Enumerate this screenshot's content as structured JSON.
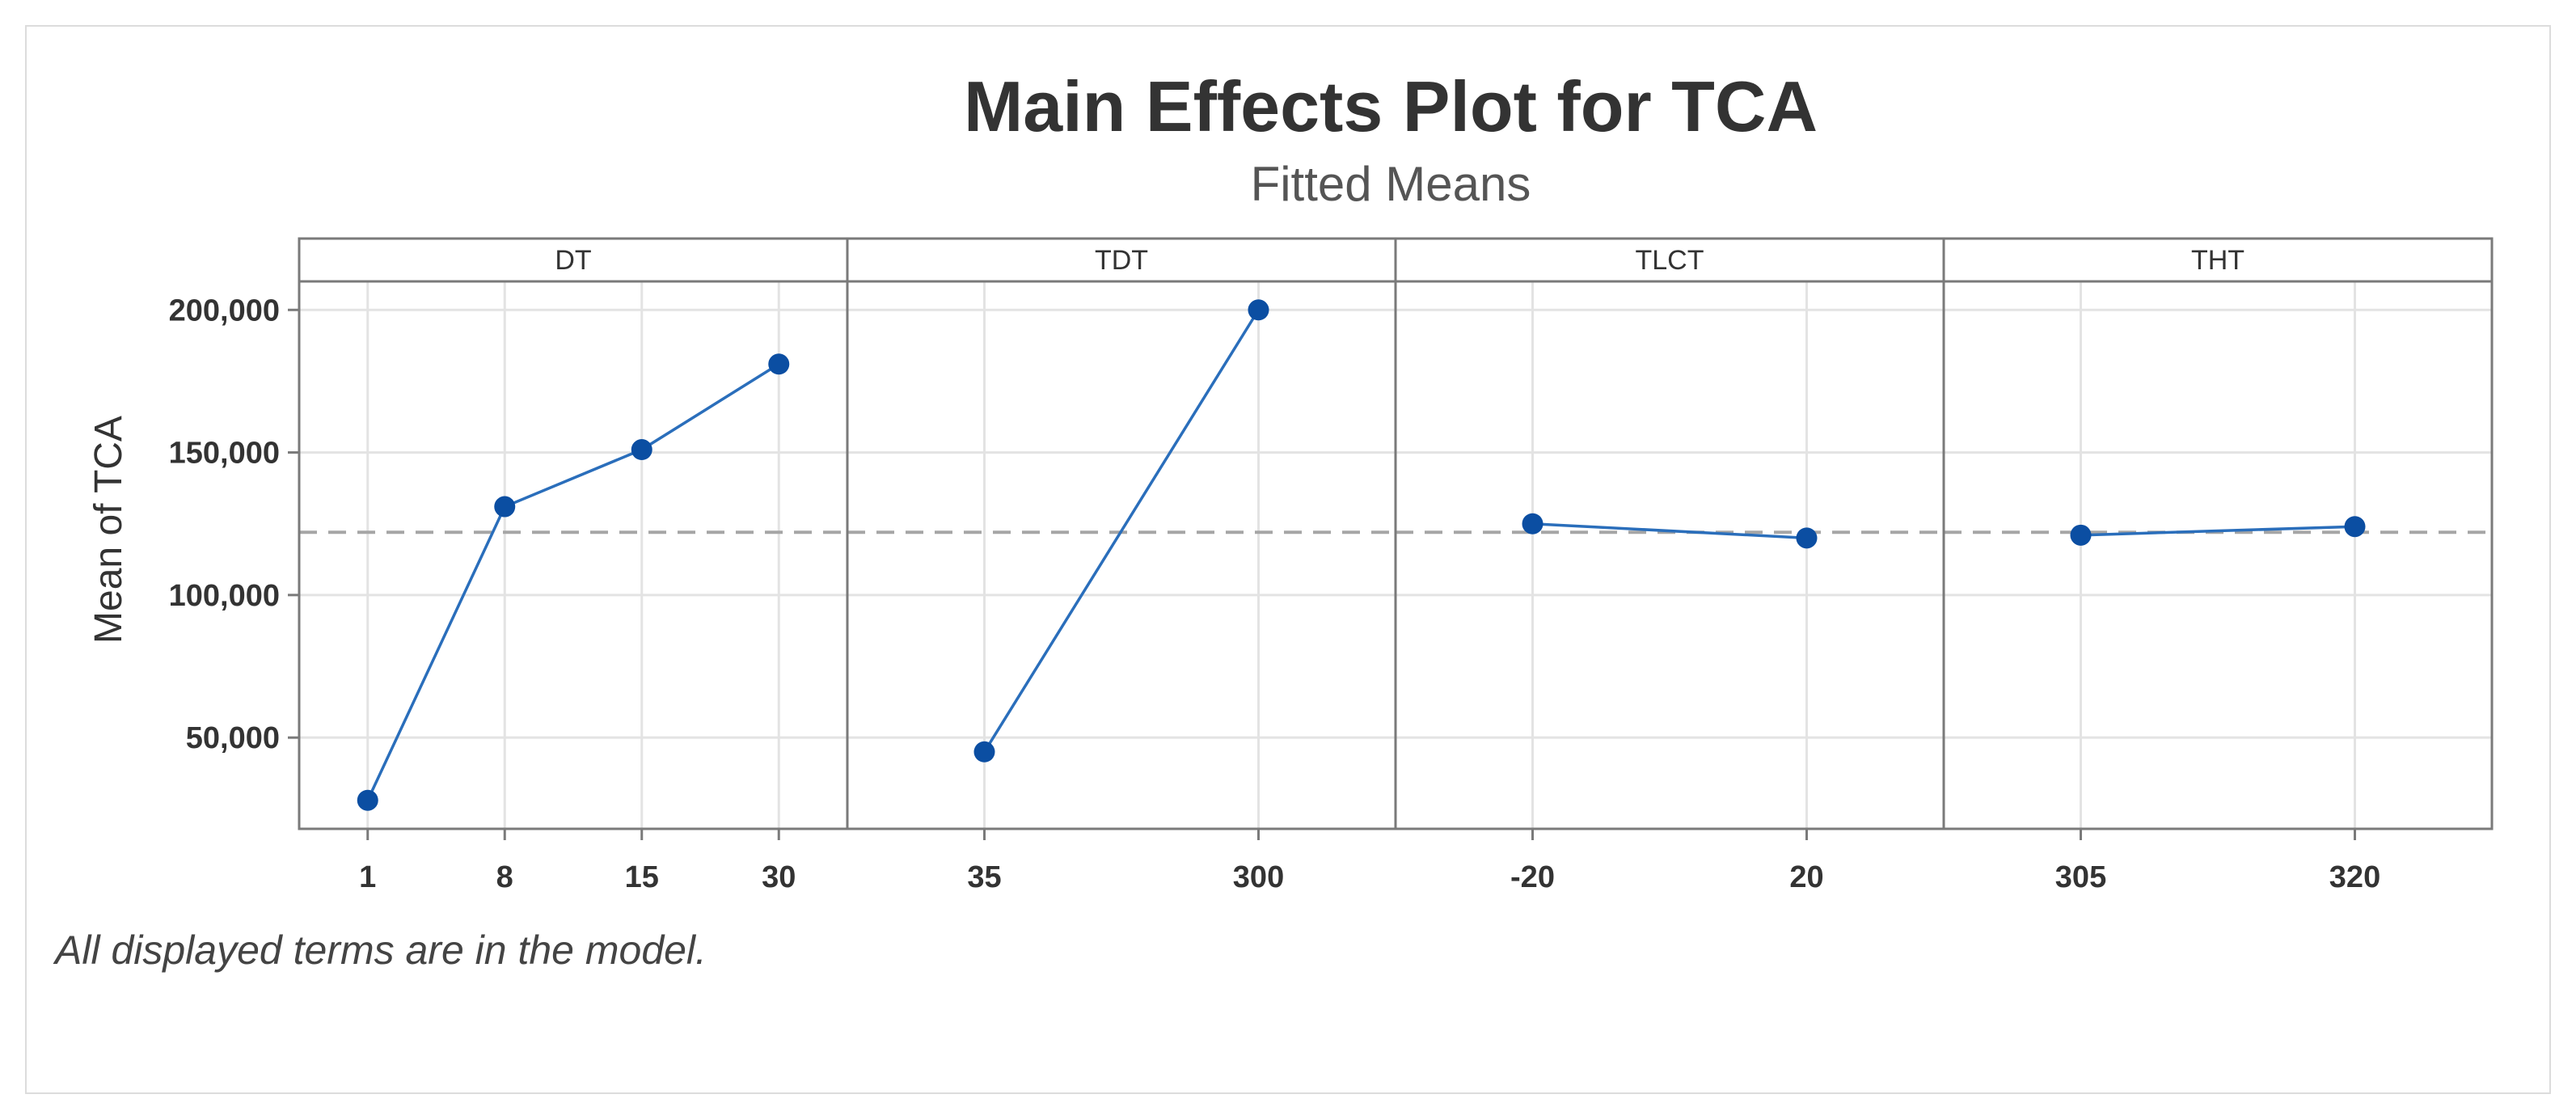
{
  "chart_data": {
    "type": "line",
    "title": "Main Effects Plot for TCA",
    "subtitle": "Fitted Means",
    "ylabel": "Mean of TCA",
    "footnote": "All displayed terms are in the model.",
    "ylim": [
      18000,
      210000
    ],
    "yticks": [
      50000,
      100000,
      150000,
      200000
    ],
    "ytick_labels": [
      "50,000",
      "100,000",
      "150,000",
      "200,000"
    ],
    "reference_line": 122000,
    "grid": true,
    "colors": {
      "series": "#2a6ebb",
      "marker": "#0b4ea2",
      "reference": "#a6a6a6",
      "grid": "#e3e3e3",
      "frame": "#7a7a7a"
    },
    "panels": [
      {
        "factor": "DT",
        "levels": [
          "1",
          "8",
          "15",
          "30"
        ],
        "values": [
          28000,
          131000,
          151000,
          181000
        ]
      },
      {
        "factor": "TDT",
        "levels": [
          "35",
          "300"
        ],
        "values": [
          45000,
          200000
        ]
      },
      {
        "factor": "TLCT",
        "levels": [
          "-20",
          "20"
        ],
        "values": [
          125000,
          120000
        ]
      },
      {
        "factor": "THT",
        "levels": [
          "305",
          "320"
        ],
        "values": [
          121000,
          124000
        ]
      }
    ]
  }
}
